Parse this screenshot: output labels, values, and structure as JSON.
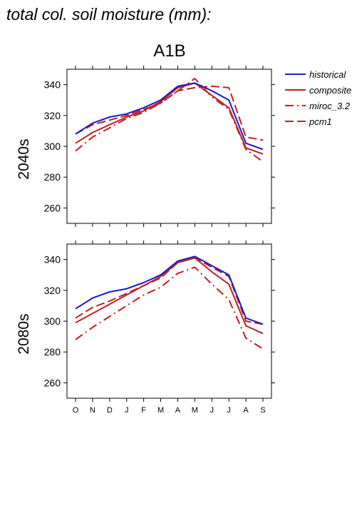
{
  "page_title": "total col. soil moisture (mm):",
  "legend": [
    {
      "label": "historical",
      "color": "#1a1acc",
      "style": "solid"
    },
    {
      "label": "composite",
      "color": "#c02020",
      "style": "solid"
    },
    {
      "label": "miroc_3.2",
      "color": "#c02020",
      "style": "dashdot"
    },
    {
      "label": "pcm1",
      "color": "#c02020",
      "style": "dashed"
    }
  ],
  "chart_data": [
    {
      "type": "line",
      "title": "A1B",
      "ylabel": "2040s",
      "categories": [
        "O",
        "N",
        "D",
        "J",
        "F",
        "M",
        "A",
        "M",
        "J",
        "J",
        "A",
        "S"
      ],
      "ylim": [
        250,
        350
      ],
      "yticks": [
        260,
        280,
        300,
        320,
        340
      ],
      "grid": false,
      "legend_position": "right",
      "series": [
        {
          "name": "historical",
          "values": [
            308,
            315,
            319,
            321,
            325,
            330,
            339,
            341,
            336,
            330,
            302,
            298
          ]
        },
        {
          "name": "composite",
          "values": [
            302,
            309,
            314,
            319,
            323,
            329,
            338,
            341,
            333,
            325,
            299,
            295
          ]
        },
        {
          "name": "miroc_3.2",
          "values": [
            297,
            306,
            312,
            318,
            322,
            328,
            336,
            344,
            332,
            324,
            298,
            290
          ]
        },
        {
          "name": "pcm1",
          "values": [
            308,
            314,
            317,
            320,
            324,
            328,
            336,
            338,
            339,
            338,
            306,
            304
          ]
        }
      ]
    },
    {
      "type": "line",
      "title": "",
      "ylabel": "2080s",
      "categories": [
        "O",
        "N",
        "D",
        "J",
        "F",
        "M",
        "A",
        "M",
        "J",
        "J",
        "A",
        "S"
      ],
      "ylim": [
        250,
        350
      ],
      "yticks": [
        260,
        280,
        300,
        320,
        340
      ],
      "grid": false,
      "series": [
        {
          "name": "historical",
          "values": [
            308,
            315,
            319,
            321,
            325,
            330,
            339,
            342,
            336,
            330,
            302,
            298
          ]
        },
        {
          "name": "composite",
          "values": [
            299,
            305,
            311,
            317,
            323,
            329,
            338,
            341,
            332,
            324,
            297,
            292
          ]
        },
        {
          "name": "miroc_3.2",
          "values": [
            288,
            296,
            303,
            310,
            317,
            322,
            331,
            335,
            324,
            314,
            289,
            282
          ]
        },
        {
          "name": "pcm1",
          "values": [
            302,
            309,
            313,
            318,
            323,
            328,
            338,
            341,
            335,
            329,
            300,
            298
          ]
        }
      ]
    }
  ]
}
